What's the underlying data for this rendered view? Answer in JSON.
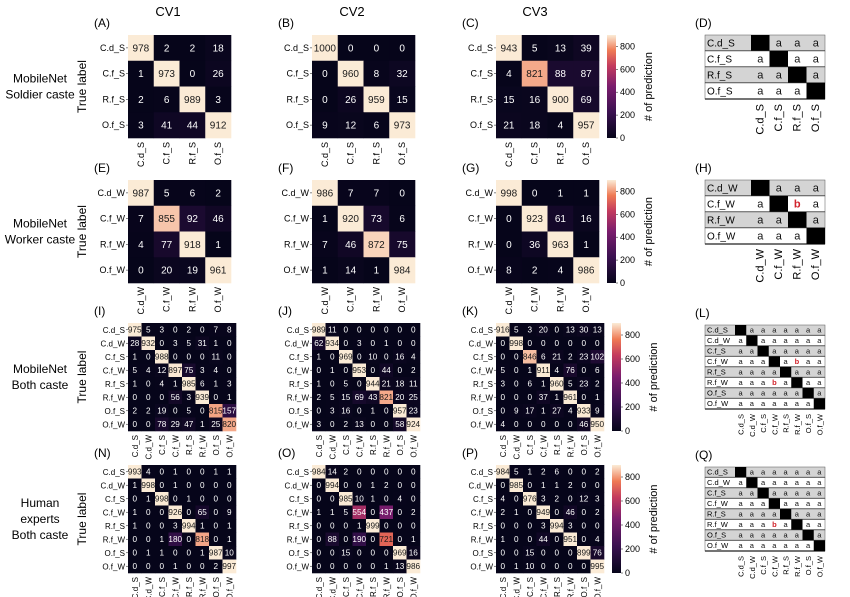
{
  "figure": {
    "column_titles": [
      "CV1",
      "CV2",
      "CV3"
    ],
    "colorbar_label": "# of prediction",
    "colorbar_ticks": [
      0,
      200,
      400,
      600,
      800
    ],
    "ylabel": "True label"
  },
  "chart_data": [
    {
      "type": "heatmap",
      "panel": "A",
      "row_title": [
        "MobileNet",
        "Soldier caste"
      ],
      "ylabel": "True label",
      "labels": [
        "C.d_S",
        "C.f_S",
        "R.f_S",
        "O.f_S"
      ],
      "matrix": [
        [
          978,
          2,
          2,
          18
        ],
        [
          1,
          973,
          0,
          26
        ],
        [
          2,
          6,
          989,
          3
        ],
        [
          3,
          41,
          44,
          912
        ]
      ]
    },
    {
      "type": "heatmap",
      "panel": "B",
      "labels": [
        "C.d_S",
        "C.f_S",
        "R.f_S",
        "O.f_S"
      ],
      "matrix": [
        [
          1000,
          0,
          0,
          0
        ],
        [
          0,
          960,
          8,
          32
        ],
        [
          0,
          26,
          959,
          15
        ],
        [
          9,
          12,
          6,
          973
        ]
      ]
    },
    {
      "type": "heatmap",
      "panel": "C",
      "labels": [
        "C.d_S",
        "C.f_S",
        "R.f_S",
        "O.f_S"
      ],
      "matrix": [
        [
          943,
          5,
          13,
          39
        ],
        [
          4,
          821,
          88,
          87
        ],
        [
          15,
          16,
          900,
          69
        ],
        [
          21,
          18,
          4,
          957
        ]
      ]
    },
    {
      "type": "table",
      "panel": "D",
      "labels": [
        "C.d_S",
        "C.f_S",
        "R.f_S",
        "O.f_S"
      ],
      "matrix": [
        [
          "",
          "",
          "a",
          "a",
          "a"
        ],
        [
          "",
          "a",
          "",
          "a",
          "a"
        ],
        [
          "",
          "a",
          "a",
          "",
          "a"
        ],
        [
          "",
          "a",
          "a",
          "a",
          ""
        ]
      ]
    },
    {
      "type": "heatmap",
      "panel": "E",
      "row_title": [
        "MobileNet",
        "Worker caste"
      ],
      "labels": [
        "C.d_W",
        "C.f_W",
        "R.f_W",
        "O.f_W"
      ],
      "matrix": [
        [
          987,
          5,
          6,
          2
        ],
        [
          7,
          855,
          92,
          46
        ],
        [
          4,
          77,
          918,
          1
        ],
        [
          0,
          20,
          19,
          961
        ]
      ]
    },
    {
      "type": "heatmap",
      "panel": "F",
      "labels": [
        "C.d_W",
        "C.f_W",
        "R.f_W",
        "O.f_W"
      ],
      "matrix": [
        [
          986,
          7,
          7,
          0
        ],
        [
          1,
          920,
          73,
          6
        ],
        [
          7,
          46,
          872,
          75
        ],
        [
          1,
          14,
          1,
          984
        ]
      ]
    },
    {
      "type": "heatmap",
      "panel": "G",
      "labels": [
        "C.d_W",
        "C.f_W",
        "R.f_W",
        "O.f_W"
      ],
      "matrix": [
        [
          998,
          0,
          1,
          1
        ],
        [
          0,
          923,
          61,
          16
        ],
        [
          0,
          36,
          963,
          1
        ],
        [
          8,
          2,
          4,
          986
        ]
      ]
    },
    {
      "type": "table",
      "panel": "H",
      "labels": [
        "C.d_W",
        "C.f_W",
        "R.f_W",
        "O.f_W"
      ],
      "matrix": [
        [
          "",
          "",
          "a",
          "a",
          "a"
        ],
        [
          "",
          "a",
          "",
          "b",
          "a"
        ],
        [
          "",
          "a",
          "a",
          "",
          "a"
        ],
        [
          "",
          "a",
          "a",
          "a",
          ""
        ]
      ]
    },
    {
      "type": "heatmap",
      "panel": "I",
      "row_title": [
        "MobileNet",
        "Both caste"
      ],
      "labels": [
        "C.d_S",
        "C.d_W",
        "C.f_S",
        "C.f_W",
        "R.f_S",
        "R.f_W",
        "O.f_S",
        "O.f_W"
      ],
      "matrix": [
        [
          975,
          5,
          3,
          0,
          2,
          0,
          7,
          8
        ],
        [
          28,
          932,
          0,
          3,
          5,
          31,
          1,
          0
        ],
        [
          1,
          0,
          988,
          0,
          0,
          0,
          11,
          0
        ],
        [
          5,
          4,
          12,
          897,
          75,
          3,
          4,
          0
        ],
        [
          1,
          0,
          4,
          1,
          985,
          6,
          1,
          3
        ],
        [
          0,
          0,
          0,
          56,
          3,
          939,
          0,
          1
        ],
        [
          2,
          2,
          19,
          0,
          5,
          0,
          815,
          157
        ],
        [
          0,
          0,
          78,
          29,
          47,
          1,
          25,
          820
        ]
      ]
    },
    {
      "type": "heatmap",
      "panel": "J",
      "labels": [
        "C.d_S",
        "C.d_W",
        "C.f_S",
        "C.f_W",
        "R.f_S",
        "R.f_W",
        "O.f_S",
        "O.f_W"
      ],
      "matrix": [
        [
          989,
          11,
          0,
          0,
          0,
          0,
          0,
          0
        ],
        [
          62,
          934,
          0,
          3,
          0,
          1,
          0,
          0
        ],
        [
          1,
          0,
          969,
          0,
          10,
          0,
          16,
          4
        ],
        [
          0,
          1,
          0,
          953,
          0,
          44,
          0,
          2
        ],
        [
          1,
          0,
          5,
          0,
          944,
          21,
          18,
          11
        ],
        [
          2,
          5,
          15,
          69,
          43,
          821,
          20,
          25
        ],
        [
          0,
          3,
          16,
          0,
          1,
          0,
          957,
          23
        ],
        [
          3,
          0,
          2,
          13,
          0,
          0,
          58,
          924
        ]
      ]
    },
    {
      "type": "heatmap",
      "panel": "K",
      "labels": [
        "C.d_S",
        "C.d_W",
        "C.f_S",
        "C.f_W",
        "R.f_S",
        "R.f_W",
        "O.f_S",
        "O.f_W"
      ],
      "matrix": [
        [
          916,
          5,
          3,
          20,
          0,
          13,
          30,
          13
        ],
        [
          0,
          998,
          0,
          0,
          0,
          0,
          0,
          0
        ],
        [
          0,
          0,
          846,
          6,
          21,
          2,
          23,
          102
        ],
        [
          5,
          0,
          1,
          911,
          4,
          76,
          0,
          6
        ],
        [
          3,
          0,
          6,
          1,
          960,
          5,
          23,
          2
        ],
        [
          0,
          0,
          0,
          37,
          1,
          961,
          0,
          1
        ],
        [
          0,
          9,
          17,
          1,
          27,
          4,
          933,
          9
        ],
        [
          4,
          0,
          0,
          0,
          0,
          0,
          46,
          950
        ]
      ]
    },
    {
      "type": "table",
      "panel": "L",
      "labels": [
        "C.d_S",
        "C.d_W",
        "C.f_S",
        "C.f_W",
        "R.f_S",
        "R.f_W",
        "O.f_S",
        "O.f_W"
      ],
      "matrix": [
        [
          "",
          "",
          "a",
          "a",
          "a",
          "a",
          "a",
          "a",
          "a"
        ],
        [
          "",
          "a",
          "",
          "a",
          "a",
          "a",
          "a",
          "a",
          "a"
        ],
        [
          "",
          "a",
          "a",
          "",
          "a",
          "a",
          "a",
          "a",
          "a"
        ],
        [
          "",
          "a",
          "a",
          "a",
          "",
          "a",
          "b",
          "a",
          "a"
        ],
        [
          "",
          "a",
          "a",
          "a",
          "a",
          "",
          "a",
          "a",
          "a"
        ],
        [
          "",
          "a",
          "a",
          "a",
          "b",
          "a",
          "",
          "a",
          "a"
        ],
        [
          "",
          "a",
          "a",
          "a",
          "a",
          "a",
          "a",
          "",
          "a"
        ],
        [
          "",
          "a",
          "a",
          "a",
          "a",
          "a",
          "a",
          "a",
          ""
        ]
      ]
    },
    {
      "type": "heatmap",
      "panel": "N",
      "row_title": [
        "Human",
        "experts",
        "Both caste"
      ],
      "labels": [
        "C.d_S",
        "C.d_W",
        "C.f_S",
        "C.f_W",
        "R.f_S",
        "R.f_W",
        "O.f_S",
        "O.f_W"
      ],
      "matrix": [
        [
          993,
          4,
          0,
          1,
          0,
          0,
          1,
          1
        ],
        [
          1,
          998,
          0,
          1,
          0,
          0,
          0,
          0
        ],
        [
          0,
          1,
          998,
          0,
          1,
          0,
          0,
          0
        ],
        [
          1,
          0,
          0,
          926,
          0,
          65,
          0,
          9
        ],
        [
          1,
          0,
          0,
          3,
          994,
          1,
          0,
          1
        ],
        [
          0,
          0,
          1,
          180,
          0,
          818,
          0,
          1
        ],
        [
          0,
          1,
          1,
          0,
          0,
          1,
          987,
          10
        ],
        [
          0,
          0,
          0,
          1,
          0,
          0,
          2,
          997
        ]
      ]
    },
    {
      "type": "heatmap",
      "panel": "O",
      "labels": [
        "C.d_S",
        "C.d_W",
        "C.f_S",
        "C.f_W",
        "R.f_S",
        "R.f_W",
        "O.f_S",
        "O.f_W"
      ],
      "matrix": [
        [
          984,
          14,
          2,
          0,
          0,
          0,
          0,
          0
        ],
        [
          0,
          994,
          0,
          0,
          1,
          2,
          0,
          0
        ],
        [
          0,
          0,
          985,
          10,
          1,
          0,
          4,
          0
        ],
        [
          1,
          1,
          5,
          554,
          0,
          437,
          0,
          2
        ],
        [
          0,
          0,
          0,
          1,
          999,
          0,
          0,
          0
        ],
        [
          0,
          88,
          0,
          190,
          0,
          721,
          0,
          1
        ],
        [
          0,
          0,
          15,
          0,
          0,
          0,
          969,
          16
        ],
        [
          0,
          0,
          0,
          0,
          0,
          1,
          13,
          986
        ]
      ]
    },
    {
      "type": "heatmap",
      "panel": "P",
      "labels": [
        "C.d_S",
        "C.d_W",
        "C.f_S",
        "C.f_W",
        "R.f_S",
        "R.f_W",
        "O.f_S",
        "O.f_W"
      ],
      "matrix": [
        [
          984,
          5,
          1,
          2,
          6,
          0,
          0,
          2
        ],
        [
          0,
          985,
          0,
          1,
          1,
          2,
          0,
          0
        ],
        [
          4,
          0,
          976,
          3,
          2,
          0,
          12,
          3
        ],
        [
          2,
          1,
          0,
          949,
          0,
          46,
          0,
          2
        ],
        [
          0,
          0,
          0,
          3,
          994,
          3,
          0,
          0
        ],
        [
          1,
          0,
          0,
          44,
          0,
          951,
          0,
          4
        ],
        [
          0,
          0,
          15,
          0,
          0,
          0,
          899,
          76
        ],
        [
          0,
          1,
          10,
          0,
          0,
          0,
          0,
          995
        ]
      ]
    },
    {
      "type": "table",
      "panel": "Q",
      "labels": [
        "C.d_S",
        "C.d_W",
        "C.f_S",
        "C.f_W",
        "R.f_S",
        "R.f_W",
        "O.f_S",
        "O.f_W"
      ],
      "matrix": [
        [
          "",
          "",
          "a",
          "a",
          "a",
          "a",
          "a",
          "a",
          "a"
        ],
        [
          "",
          "a",
          "",
          "a",
          "a",
          "a",
          "a",
          "a",
          "a"
        ],
        [
          "",
          "a",
          "a",
          "",
          "a",
          "a",
          "a",
          "a",
          "a"
        ],
        [
          "",
          "a",
          "a",
          "a",
          "",
          "a",
          "a",
          "a",
          "a"
        ],
        [
          "",
          "a",
          "a",
          "a",
          "a",
          "",
          "a",
          "a",
          "a"
        ],
        [
          "",
          "a",
          "a",
          "a",
          "b",
          "a",
          "",
          "a",
          "a"
        ],
        [
          "",
          "a",
          "a",
          "a",
          "a",
          "a",
          "a",
          "",
          "a"
        ],
        [
          "",
          "a",
          "a",
          "a",
          "a",
          "a",
          "a",
          "a",
          ""
        ]
      ]
    }
  ],
  "colors": {
    "low": "#06051a",
    "mid1": "#3a1150",
    "mid2": "#7a1d6d",
    "mid3": "#c33b5e",
    "mid4": "#ef7a54",
    "high": "#fbebd6",
    "highlight_b": "#d1242c"
  }
}
